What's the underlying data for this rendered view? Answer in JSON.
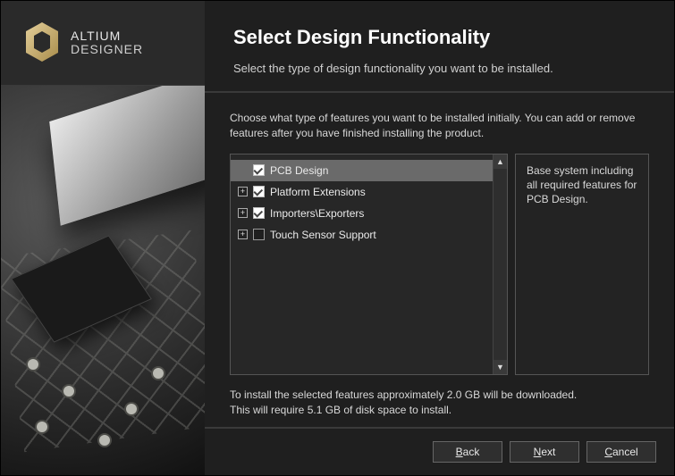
{
  "brand": {
    "line1": "ALTIUM",
    "line2": "DESIGNER"
  },
  "header": {
    "title": "Select Design Functionality",
    "subtitle": "Select the type of design functionality you want to be installed."
  },
  "instructions": "Choose what type of features you want to be installed initially. You can add or remove features after you have finished installing the product.",
  "features": [
    {
      "label": "PCB Design",
      "checked": true,
      "expandable": false,
      "selected": true
    },
    {
      "label": "Platform Extensions",
      "checked": true,
      "expandable": true,
      "selected": false
    },
    {
      "label": "Importers\\Exporters",
      "checked": true,
      "expandable": true,
      "selected": false
    },
    {
      "label": "Touch Sensor Support",
      "checked": false,
      "expandable": true,
      "selected": false
    }
  ],
  "description": "Base system including all required features for PCB Design.",
  "footnote_line1": "To install the selected features approximately 2.0 GB will be downloaded.",
  "footnote_line2": "This will require 5.1 GB of disk space to install.",
  "buttons": {
    "back": "Back",
    "next": "Next",
    "cancel": "Cancel"
  },
  "colors": {
    "bg": "#1f1f1f",
    "panel_border": "#555555",
    "selected_row": "#6a6a6a",
    "text": "#d8d8d8",
    "accent": "#ffffff"
  }
}
